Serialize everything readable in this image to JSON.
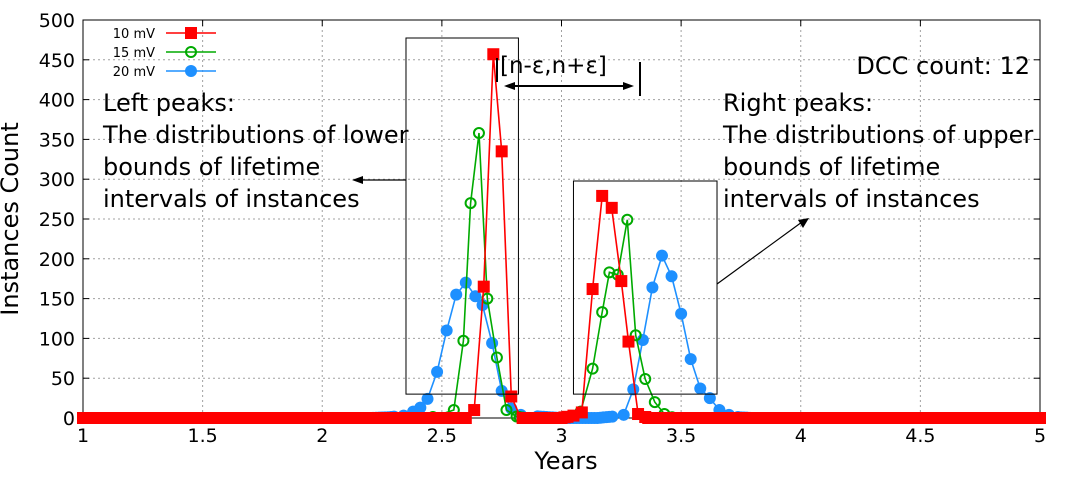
{
  "chart_data": {
    "type": "line",
    "xlabel": "Years",
    "ylabel": "Instances Count",
    "xlim": [
      1,
      5
    ],
    "ylim": [
      0,
      500
    ],
    "xticks": [
      "1",
      "1.5",
      "2",
      "2.5",
      "3",
      "3.5",
      "4",
      "4.5",
      "5"
    ],
    "yticks": [
      "0",
      "50",
      "100",
      "150",
      "200",
      "250",
      "300",
      "350",
      "400",
      "450",
      "500"
    ],
    "grid": true,
    "legend_position": "top-left",
    "series": [
      {
        "name": "10 mV",
        "color": "#ff0000",
        "marker": "square",
        "x": [
          1.0,
          2.0,
          2.52,
          2.56,
          2.6,
          2.635,
          2.675,
          2.715,
          2.75,
          2.79,
          2.83,
          2.9,
          3.0,
          3.05,
          3.085,
          3.13,
          3.17,
          3.21,
          3.25,
          3.28,
          3.32,
          3.36,
          3.45,
          4.0,
          5.0
        ],
        "y": [
          0,
          0,
          0,
          0,
          0,
          10,
          165,
          457,
          335,
          27,
          0,
          0,
          0,
          3,
          7,
          162,
          279,
          264,
          172,
          96,
          5,
          0,
          0,
          0,
          0
        ]
      },
      {
        "name": "15 mV",
        "color": "#00aa00",
        "marker": "circle-open",
        "x": [
          1.0,
          2.0,
          2.45,
          2.55,
          2.59,
          2.62,
          2.655,
          2.69,
          2.73,
          2.77,
          2.81,
          2.85,
          3.0,
          3.08,
          3.13,
          3.17,
          3.2,
          3.235,
          3.275,
          3.31,
          3.35,
          3.39,
          3.43,
          3.47,
          3.55,
          4.0,
          5.0
        ],
        "y": [
          0,
          0,
          0,
          10,
          97,
          270,
          358,
          150,
          76,
          10,
          2,
          0,
          0,
          8,
          62,
          133,
          183,
          180,
          249,
          104,
          49,
          20,
          5,
          0,
          0,
          0,
          0
        ]
      },
      {
        "name": "20 mV",
        "color": "#1e90ff",
        "marker": "circle-filled",
        "x": [
          1.0,
          2.0,
          2.2,
          2.28,
          2.34,
          2.38,
          2.41,
          2.44,
          2.48,
          2.52,
          2.56,
          2.6,
          2.64,
          2.67,
          2.71,
          2.75,
          2.79,
          2.83,
          2.9,
          3.0,
          3.15,
          3.22,
          3.26,
          3.3,
          3.34,
          3.38,
          3.42,
          3.46,
          3.5,
          3.54,
          3.58,
          3.62,
          3.66,
          3.7,
          3.74,
          3.8,
          3.9,
          4.0,
          5.0
        ],
        "y": [
          0,
          0,
          0,
          1,
          3,
          8,
          13,
          24,
          58,
          110,
          155,
          170,
          153,
          142,
          94,
          34,
          12,
          4,
          2,
          0,
          0,
          2,
          4,
          36,
          98,
          164,
          204,
          178,
          131,
          74,
          37,
          25,
          10,
          4,
          1,
          0,
          0,
          0,
          0
        ]
      }
    ],
    "annotations": {
      "dcc_count": "DCC count: 12",
      "interval": "[n-ε,n+ε]",
      "left_peaks": [
        "Left peaks:",
        "The distributions of lower",
        "bounds of lifetime",
        "intervals of instances"
      ],
      "right_peaks": [
        "Right peaks:",
        "The distributions of upper",
        "bounds of lifetime",
        "intervals of instances"
      ]
    }
  }
}
